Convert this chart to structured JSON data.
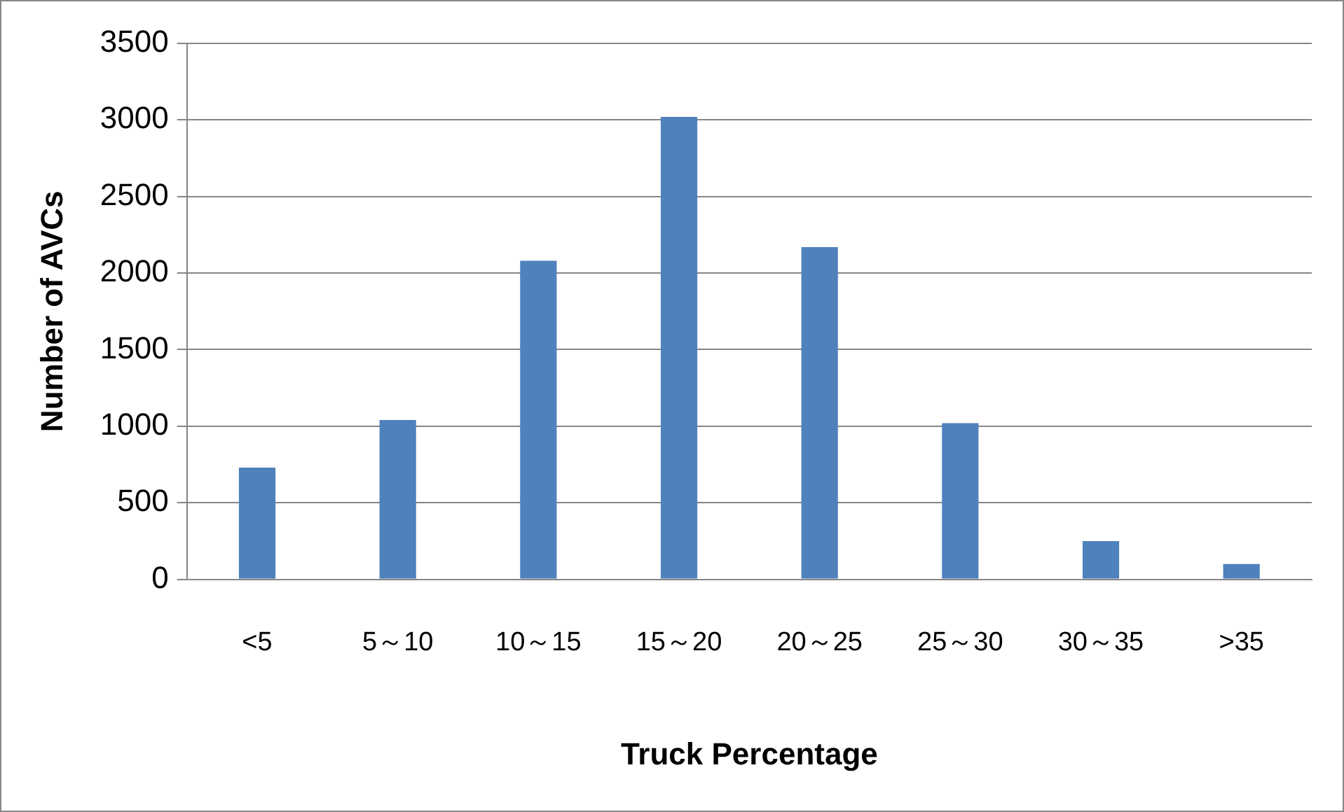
{
  "chart_data": {
    "type": "bar",
    "xlabel": "Truck Percentage",
    "ylabel": "Number of AVCs",
    "categories": [
      "<5",
      "5～10",
      "10～15",
      "15～20",
      "20～25",
      "25～30",
      "30～35",
      ">35"
    ],
    "values": [
      730,
      1040,
      2080,
      3020,
      2170,
      1020,
      250,
      100
    ],
    "color": "#4f81bd",
    "ylim": [
      0,
      3500
    ],
    "yticks": [
      0,
      500,
      1000,
      1500,
      2000,
      2500,
      3000,
      3500
    ],
    "grid": "y",
    "legend": false
  }
}
